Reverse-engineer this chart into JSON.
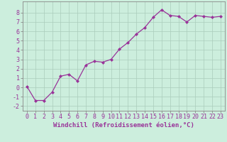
{
  "x": [
    0,
    1,
    2,
    3,
    4,
    5,
    6,
    7,
    8,
    9,
    10,
    11,
    12,
    13,
    14,
    15,
    16,
    17,
    18,
    19,
    20,
    21,
    22,
    23
  ],
  "y": [
    0.1,
    -1.4,
    -1.4,
    -0.5,
    1.2,
    1.4,
    0.7,
    2.4,
    2.8,
    2.7,
    3.0,
    4.1,
    4.8,
    5.7,
    6.4,
    7.5,
    8.3,
    7.7,
    7.6,
    7.0,
    7.7,
    7.6,
    7.5,
    7.6
  ],
  "line_color": "#993399",
  "marker": "D",
  "marker_size": 2.0,
  "bg_color": "#cceedd",
  "grid_color": "#aaccbb",
  "xlabel": "Windchill (Refroidissement éolien,°C)",
  "xlim": [
    -0.5,
    23.5
  ],
  "ylim": [
    -2.5,
    9.2
  ],
  "yticks": [
    -2,
    -1,
    0,
    1,
    2,
    3,
    4,
    5,
    6,
    7,
    8
  ],
  "xticks": [
    0,
    1,
    2,
    3,
    4,
    5,
    6,
    7,
    8,
    9,
    10,
    11,
    12,
    13,
    14,
    15,
    16,
    17,
    18,
    19,
    20,
    21,
    22,
    23
  ],
  "xlabel_fontsize": 6.5,
  "tick_fontsize": 6.0,
  "line_width": 0.9
}
